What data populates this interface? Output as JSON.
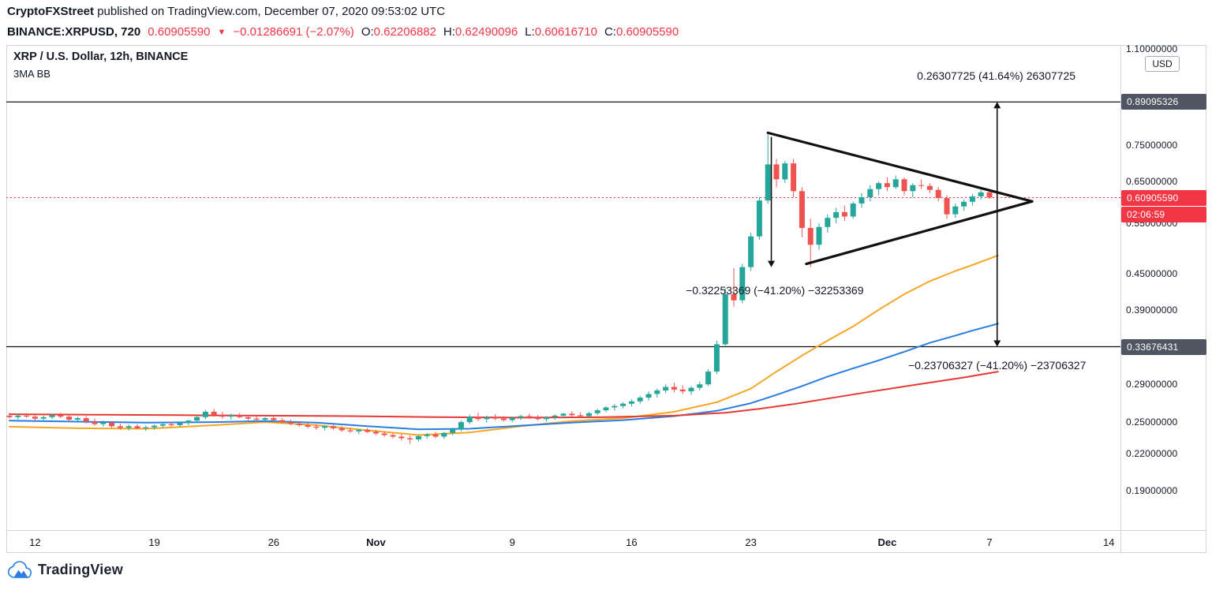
{
  "attribution": {
    "author": "CryptoFXStreet",
    "rest": " published on TradingView.com, December 07, 2020 09:53:02 UTC"
  },
  "symbol_bar": {
    "symbol": "BINANCE:XRPUSD, 720",
    "last_price": "0.60905590",
    "direction_icon": "▼",
    "change": "−0.01286691 (−2.07%)",
    "ohlc": [
      {
        "label": "O:",
        "value": "0.62206882"
      },
      {
        "label": "H:",
        "value": "0.62490096"
      },
      {
        "label": "L:",
        "value": "0.60616710"
      },
      {
        "label": "C:",
        "value": "0.60905590"
      }
    ]
  },
  "legend": {
    "title": "XRP / U.S. Dollar, 12h, BINANCE",
    "indicator": "3MA BB"
  },
  "price_axis": {
    "currency_button": "USD",
    "ticks": [
      {
        "label": "1.10000000",
        "price": 1.1
      },
      {
        "label": "0.75000000",
        "price": 0.75
      },
      {
        "label": "0.65000000",
        "price": 0.65
      },
      {
        "label": "0.55000000",
        "price": 0.55
      },
      {
        "label": "0.45000000",
        "price": 0.45
      },
      {
        "label": "0.39000000",
        "price": 0.39
      },
      {
        "label": "0.29000000",
        "price": 0.29
      },
      {
        "label": "0.25000000",
        "price": 0.25
      },
      {
        "label": "0.22000000",
        "price": 0.22
      },
      {
        "label": "0.19000000",
        "price": 0.19
      }
    ],
    "badges": [
      {
        "label": "0.89095326",
        "price": 0.89095326,
        "style": "dark"
      },
      {
        "label": "0.60905590",
        "price": 0.6090559,
        "style": "red"
      },
      {
        "label": "02:06:59",
        "attach_to": 0.6090559,
        "style": "red",
        "role": "countdown"
      },
      {
        "label": "0.33676431",
        "price": 0.33676431,
        "style": "dark"
      }
    ]
  },
  "time_axis": {
    "labels": [
      {
        "label": "12",
        "i": 3,
        "bold": false
      },
      {
        "label": "19",
        "i": 17,
        "bold": false
      },
      {
        "label": "26",
        "i": 31,
        "bold": false
      },
      {
        "label": "Nov",
        "i": 43,
        "bold": true
      },
      {
        "label": "9",
        "i": 59,
        "bold": false
      },
      {
        "label": "16",
        "i": 73,
        "bold": false
      },
      {
        "label": "23",
        "i": 87,
        "bold": false
      },
      {
        "label": "Dec",
        "i": 103,
        "bold": true
      },
      {
        "label": "7",
        "i": 115,
        "bold": false
      },
      {
        "label": "14",
        "i": 129,
        "bold": false
      }
    ]
  },
  "chart_data": {
    "type": "candlestick",
    "title": "XRP / U.S. Dollar, 12h, BINANCE",
    "interval": "12h",
    "exchange": "BINANCE",
    "scale": "log",
    "grid": "off",
    "visible_price_range": [
      0.162,
      1.12
    ],
    "candles": [
      [
        0.256,
        0.259,
        0.253,
        0.2545
      ],
      [
        0.2545,
        0.2575,
        0.252,
        0.256
      ],
      [
        0.256,
        0.2585,
        0.254,
        0.255
      ],
      [
        0.255,
        0.257,
        0.251,
        0.253
      ],
      [
        0.253,
        0.256,
        0.25,
        0.2545
      ],
      [
        0.2545,
        0.258,
        0.2525,
        0.2565
      ],
      [
        0.2565,
        0.259,
        0.2535,
        0.255
      ],
      [
        0.255,
        0.2565,
        0.2505,
        0.252
      ],
      [
        0.252,
        0.255,
        0.249,
        0.2535
      ],
      [
        0.2535,
        0.2555,
        0.248,
        0.25
      ],
      [
        0.25,
        0.253,
        0.246,
        0.2475
      ],
      [
        0.2475,
        0.251,
        0.245,
        0.249
      ],
      [
        0.249,
        0.2505,
        0.244,
        0.2455
      ],
      [
        0.2455,
        0.248,
        0.242,
        0.244
      ],
      [
        0.244,
        0.247,
        0.2415,
        0.2455
      ],
      [
        0.2455,
        0.2475,
        0.2425,
        0.2435
      ],
      [
        0.2435,
        0.246,
        0.241,
        0.2445
      ],
      [
        0.2445,
        0.247,
        0.242,
        0.246
      ],
      [
        0.246,
        0.249,
        0.244,
        0.2475
      ],
      [
        0.2475,
        0.25,
        0.245,
        0.2465
      ],
      [
        0.2465,
        0.2495,
        0.2445,
        0.2485
      ],
      [
        0.2485,
        0.252,
        0.2465,
        0.251
      ],
      [
        0.251,
        0.256,
        0.249,
        0.2545
      ],
      [
        0.2545,
        0.262,
        0.2525,
        0.26
      ],
      [
        0.26,
        0.263,
        0.255,
        0.257
      ],
      [
        0.257,
        0.26,
        0.253,
        0.255
      ],
      [
        0.255,
        0.258,
        0.252,
        0.2565
      ],
      [
        0.2565,
        0.2585,
        0.2535,
        0.2545
      ],
      [
        0.2545,
        0.257,
        0.2515,
        0.253
      ],
      [
        0.253,
        0.2555,
        0.25,
        0.252
      ],
      [
        0.252,
        0.2545,
        0.2495,
        0.2535
      ],
      [
        0.2535,
        0.2555,
        0.2505,
        0.2515
      ],
      [
        0.2515,
        0.2535,
        0.248,
        0.2495
      ],
      [
        0.2495,
        0.252,
        0.2465,
        0.248
      ],
      [
        0.248,
        0.2505,
        0.245,
        0.2465
      ],
      [
        0.2465,
        0.249,
        0.2435,
        0.245
      ],
      [
        0.245,
        0.2475,
        0.242,
        0.244
      ],
      [
        0.244,
        0.2465,
        0.2415,
        0.2455
      ],
      [
        0.2455,
        0.247,
        0.242,
        0.2435
      ],
      [
        0.2435,
        0.2455,
        0.24,
        0.2415
      ],
      [
        0.2415,
        0.244,
        0.239,
        0.2405
      ],
      [
        0.2405,
        0.243,
        0.238,
        0.242
      ],
      [
        0.242,
        0.2435,
        0.239,
        0.24
      ],
      [
        0.24,
        0.242,
        0.237,
        0.2385
      ],
      [
        0.2385,
        0.2405,
        0.2355,
        0.237
      ],
      [
        0.237,
        0.239,
        0.234,
        0.2355
      ],
      [
        0.2355,
        0.238,
        0.232,
        0.234
      ],
      [
        0.234,
        0.2365,
        0.229,
        0.233
      ],
      [
        0.233,
        0.237,
        0.231,
        0.236
      ],
      [
        0.236,
        0.239,
        0.2335,
        0.2375
      ],
      [
        0.2375,
        0.24,
        0.234,
        0.2355
      ],
      [
        0.2355,
        0.24,
        0.2335,
        0.239
      ],
      [
        0.239,
        0.244,
        0.237,
        0.2425
      ],
      [
        0.2425,
        0.251,
        0.2405,
        0.2495
      ],
      [
        0.2495,
        0.257,
        0.2475,
        0.255
      ],
      [
        0.255,
        0.259,
        0.2505,
        0.2525
      ],
      [
        0.2525,
        0.256,
        0.249,
        0.2545
      ],
      [
        0.2545,
        0.2575,
        0.2515,
        0.253
      ],
      [
        0.253,
        0.2555,
        0.25,
        0.2515
      ],
      [
        0.2515,
        0.255,
        0.2495,
        0.254
      ],
      [
        0.254,
        0.257,
        0.2515,
        0.2555
      ],
      [
        0.2555,
        0.258,
        0.2525,
        0.254
      ],
      [
        0.254,
        0.2565,
        0.251,
        0.2525
      ],
      [
        0.2525,
        0.2555,
        0.25,
        0.2545
      ],
      [
        0.2545,
        0.2575,
        0.252,
        0.256
      ],
      [
        0.256,
        0.259,
        0.2535,
        0.258
      ],
      [
        0.258,
        0.2605,
        0.255,
        0.2565
      ],
      [
        0.2565,
        0.2595,
        0.2545,
        0.2555
      ],
      [
        0.2555,
        0.26,
        0.254,
        0.2585
      ],
      [
        0.2585,
        0.263,
        0.2565,
        0.2615
      ],
      [
        0.2615,
        0.266,
        0.2595,
        0.2645
      ],
      [
        0.2645,
        0.268,
        0.261,
        0.266
      ],
      [
        0.266,
        0.27,
        0.2635,
        0.2685
      ],
      [
        0.2685,
        0.273,
        0.2655,
        0.271
      ],
      [
        0.271,
        0.277,
        0.2685,
        0.275
      ],
      [
        0.275,
        0.282,
        0.272,
        0.279
      ],
      [
        0.279,
        0.285,
        0.275,
        0.283
      ],
      [
        0.283,
        0.29,
        0.28,
        0.287
      ],
      [
        0.287,
        0.292,
        0.281,
        0.284
      ],
      [
        0.284,
        0.289,
        0.279,
        0.282
      ],
      [
        0.282,
        0.288,
        0.278,
        0.286
      ],
      [
        0.286,
        0.293,
        0.283,
        0.29
      ],
      [
        0.29,
        0.308,
        0.288,
        0.305
      ],
      [
        0.305,
        0.345,
        0.302,
        0.34
      ],
      [
        0.34,
        0.425,
        0.338,
        0.415
      ],
      [
        0.415,
        0.46,
        0.395,
        0.405
      ],
      [
        0.405,
        0.468,
        0.4,
        0.462
      ],
      [
        0.462,
        0.53,
        0.455,
        0.522
      ],
      [
        0.522,
        0.61,
        0.515,
        0.602
      ],
      [
        0.602,
        0.783,
        0.595,
        0.695
      ],
      [
        0.695,
        0.71,
        0.635,
        0.655
      ],
      [
        0.655,
        0.705,
        0.645,
        0.698
      ],
      [
        0.698,
        0.71,
        0.61,
        0.625
      ],
      [
        0.625,
        0.635,
        0.52,
        0.54
      ],
      [
        0.54,
        0.56,
        0.462,
        0.505
      ],
      [
        0.505,
        0.55,
        0.495,
        0.542
      ],
      [
        0.542,
        0.57,
        0.53,
        0.562
      ],
      [
        0.562,
        0.585,
        0.55,
        0.575
      ],
      [
        0.575,
        0.59,
        0.555,
        0.565
      ],
      [
        0.565,
        0.6,
        0.56,
        0.595
      ],
      [
        0.595,
        0.62,
        0.585,
        0.61
      ],
      [
        0.61,
        0.64,
        0.6,
        0.63
      ],
      [
        0.63,
        0.65,
        0.615,
        0.645
      ],
      [
        0.645,
        0.66,
        0.625,
        0.635
      ],
      [
        0.635,
        0.665,
        0.63,
        0.655
      ],
      [
        0.655,
        0.66,
        0.615,
        0.625
      ],
      [
        0.625,
        0.645,
        0.61,
        0.64
      ],
      [
        0.64,
        0.655,
        0.63,
        0.638
      ],
      [
        0.638,
        0.645,
        0.62,
        0.628
      ],
      [
        0.628,
        0.635,
        0.6,
        0.608
      ],
      [
        0.608,
        0.615,
        0.56,
        0.57
      ],
      [
        0.57,
        0.595,
        0.562,
        0.588
      ],
      [
        0.588,
        0.605,
        0.578,
        0.599
      ],
      [
        0.599,
        0.618,
        0.59,
        0.612
      ],
      [
        0.612,
        0.628,
        0.605,
        0.6221
      ],
      [
        0.6221,
        0.6249,
        0.6062,
        0.6091
      ]
    ],
    "ma_lines": [
      {
        "name": "ma-fast",
        "color": "#f5a623",
        "points": [
          [
            0,
            0.245
          ],
          [
            8,
            0.2435
          ],
          [
            16,
            0.243
          ],
          [
            24,
            0.2465
          ],
          [
            30,
            0.2495
          ],
          [
            36,
            0.2465
          ],
          [
            42,
            0.2415
          ],
          [
            48,
            0.237
          ],
          [
            54,
            0.2395
          ],
          [
            60,
            0.2455
          ],
          [
            66,
            0.2505
          ],
          [
            72,
            0.2535
          ],
          [
            78,
            0.26
          ],
          [
            83,
            0.27
          ],
          [
            87,
            0.285
          ],
          [
            90,
            0.305
          ],
          [
            93,
            0.325
          ],
          [
            96,
            0.345
          ],
          [
            99,
            0.365
          ],
          [
            102,
            0.39
          ],
          [
            105,
            0.415
          ],
          [
            108,
            0.437
          ],
          [
            111,
            0.455
          ],
          [
            113,
            0.466
          ],
          [
            116,
            0.484
          ]
        ]
      },
      {
        "name": "ma-mid",
        "color": "#2a7de1",
        "points": [
          [
            0,
            0.251
          ],
          [
            8,
            0.25
          ],
          [
            16,
            0.249
          ],
          [
            24,
            0.2495
          ],
          [
            30,
            0.2505
          ],
          [
            36,
            0.249
          ],
          [
            42,
            0.2455
          ],
          [
            48,
            0.2425
          ],
          [
            54,
            0.243
          ],
          [
            60,
            0.246
          ],
          [
            66,
            0.249
          ],
          [
            72,
            0.2515
          ],
          [
            78,
            0.2555
          ],
          [
            83,
            0.261
          ],
          [
            87,
            0.269
          ],
          [
            90,
            0.278
          ],
          [
            93,
            0.288
          ],
          [
            96,
            0.299
          ],
          [
            99,
            0.309
          ],
          [
            102,
            0.319
          ],
          [
            105,
            0.33
          ],
          [
            108,
            0.342
          ],
          [
            111,
            0.352
          ],
          [
            113,
            0.359
          ],
          [
            116,
            0.369
          ]
        ]
      },
      {
        "name": "ma-slow",
        "color": "#e53935",
        "points": [
          [
            0,
            0.2575
          ],
          [
            10,
            0.257
          ],
          [
            20,
            0.2565
          ],
          [
            30,
            0.256
          ],
          [
            40,
            0.2555
          ],
          [
            50,
            0.2545
          ],
          [
            60,
            0.254
          ],
          [
            70,
            0.2545
          ],
          [
            78,
            0.256
          ],
          [
            84,
            0.259
          ],
          [
            88,
            0.263
          ],
          [
            92,
            0.268
          ],
          [
            96,
            0.274
          ],
          [
            100,
            0.28
          ],
          [
            104,
            0.286
          ],
          [
            108,
            0.292
          ],
          [
            112,
            0.298
          ],
          [
            116,
            0.305
          ]
        ]
      }
    ]
  },
  "drawings": {
    "horizontal_lines": [
      {
        "name": "upper-target-line",
        "price": 0.89095326
      },
      {
        "name": "lower-support-line",
        "price": 0.33676431
      }
    ],
    "last_price_line": {
      "price": 0.6090559
    },
    "trend_lines": [
      {
        "name": "triangle-upper-line",
        "from": {
          "i": 89,
          "price": 0.788
        },
        "to": {
          "i": 120,
          "price": 0.6
        }
      },
      {
        "name": "triangle-lower-line",
        "from": {
          "i": 93.5,
          "price": 0.468
        },
        "to": {
          "i": 120,
          "price": 0.6
        }
      }
    ],
    "arrows": [
      {
        "name": "measured-move-arrow",
        "i": 89.4,
        "from_price": 0.775,
        "to_price": 0.462,
        "heads": "down"
      },
      {
        "name": "projection-arrow",
        "i": 115.9,
        "from_price": 0.89095326,
        "to_price": 0.33676431,
        "heads": "both"
      }
    ],
    "labels": [
      {
        "name": "measured-move-label",
        "text": "−0.32253369 (−41.20%) −32253369",
        "i": 89.8,
        "price": 0.4215
      },
      {
        "name": "projection-label",
        "text": "0.26307725 (41.64%) 26307725",
        "i": 115.8,
        "price": 0.99
      },
      {
        "name": "target-label",
        "text": "−0.23706327 (−41.20%) −23706327",
        "i": 115.9,
        "price": 0.313
      }
    ]
  },
  "footer": {
    "brand": "TradingView"
  },
  "colors": {
    "up": "#26a69a",
    "down": "#ef5350",
    "accent": "#f23645",
    "badge_dark": "#4f5662",
    "frame": "#d1d4dc",
    "drawing": "#111111",
    "text": "#131722"
  }
}
